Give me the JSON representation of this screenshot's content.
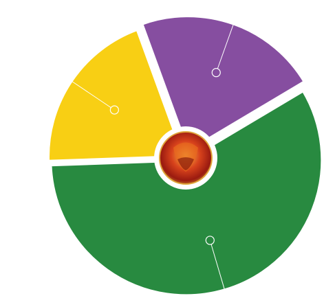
{
  "chart_data": {
    "type": "pie",
    "values": [
      22,
      58,
      20
    ],
    "colors": [
      "#864ea0",
      "#288a40",
      "#f8cf14"
    ]
  }
}
